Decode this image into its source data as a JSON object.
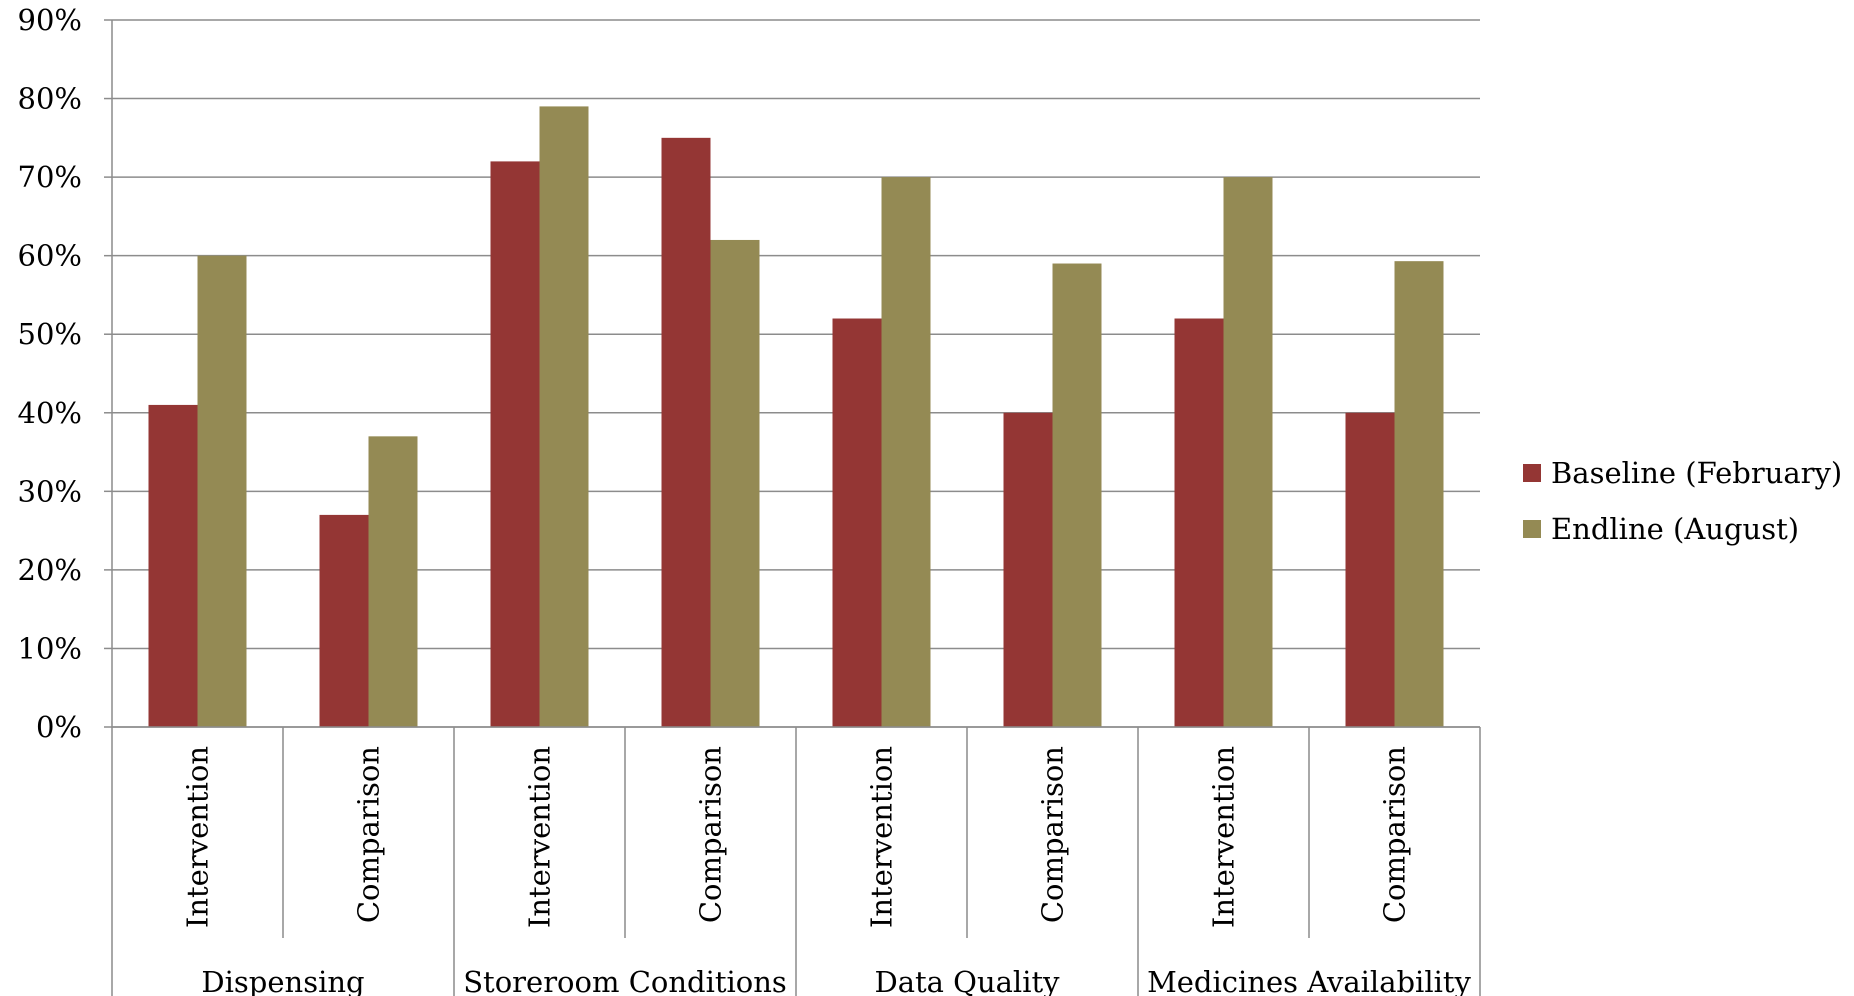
{
  "chart_data": {
    "type": "bar",
    "groups": [
      "Dispensing",
      "Storeroom Conditions",
      "Data Quality",
      "Medicines Availability"
    ],
    "categories": [
      "Intervention",
      "Comparison",
      "Intervention",
      "Comparison",
      "Intervention",
      "Comparison",
      "Intervention",
      "Comparison"
    ],
    "series": [
      {
        "name": "Baseline (February)",
        "color": "#943634",
        "values": [
          41,
          27,
          72,
          75,
          52,
          40,
          52,
          40
        ]
      },
      {
        "name": "Endline (August)",
        "color": "#948a54",
        "values": [
          60,
          37,
          79,
          62,
          70,
          59,
          70,
          59.3
        ]
      }
    ],
    "ylim": [
      0,
      90
    ],
    "yticks": [
      "0%",
      "10%",
      "20%",
      "30%",
      "40%",
      "50%",
      "60%",
      "70%",
      "80%",
      "90%"
    ],
    "grid": true,
    "legend": "right"
  }
}
